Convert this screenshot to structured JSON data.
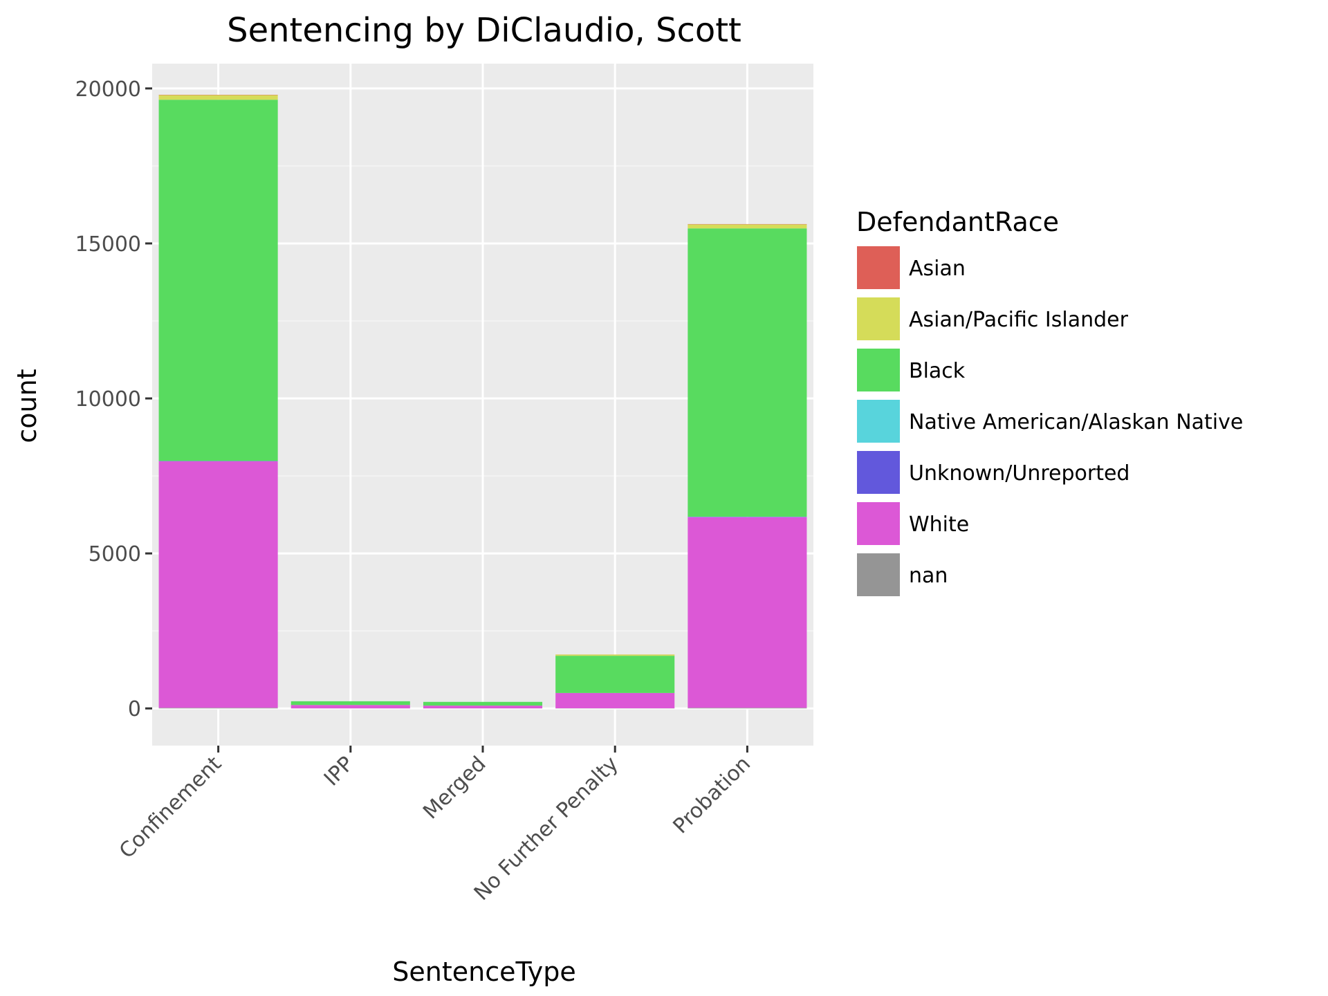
{
  "chart_data": {
    "type": "bar",
    "stacked": true,
    "title": "Sentencing by DiClaudio, Scott",
    "xlabel": "SentenceType",
    "ylabel": "count",
    "categories": [
      "Confinement",
      "IPP",
      "Merged",
      "No Further Penalty",
      "Probation"
    ],
    "ylim": [
      -1200,
      20800
    ],
    "yticks": [
      0,
      5000,
      10000,
      15000,
      20000
    ],
    "grid": true,
    "legend": {
      "title": "DefendantRace",
      "position": "right"
    },
    "series": [
      {
        "name": "Asian",
        "color": "#de5f57",
        "values": [
          10,
          0,
          0,
          2,
          10
        ]
      },
      {
        "name": "Asian/Pacific Islander",
        "color": "#d5dc59",
        "values": [
          150,
          0,
          0,
          40,
          130
        ]
      },
      {
        "name": "Black",
        "color": "#58db5f",
        "values": [
          11650,
          120,
          120,
          1200,
          9300
        ]
      },
      {
        "name": "Native American/Alaskan Native",
        "color": "#58d4dc",
        "values": [
          5,
          0,
          0,
          1,
          5
        ]
      },
      {
        "name": "Unknown/Unreported",
        "color": "#6258dc",
        "values": [
          10,
          0,
          0,
          2,
          10
        ]
      },
      {
        "name": "White",
        "color": "#dc58d6",
        "values": [
          7950,
          110,
          90,
          490,
          6150
        ]
      },
      {
        "name": "nan",
        "color": "#959595",
        "values": [
          20,
          1,
          1,
          5,
          20
        ]
      }
    ],
    "stack_order_bottom_to_top": [
      "nan",
      "White",
      "Unknown/Unreported",
      "Native American/Alaskan Native",
      "Black",
      "Asian/Pacific Islander",
      "Asian"
    ]
  }
}
